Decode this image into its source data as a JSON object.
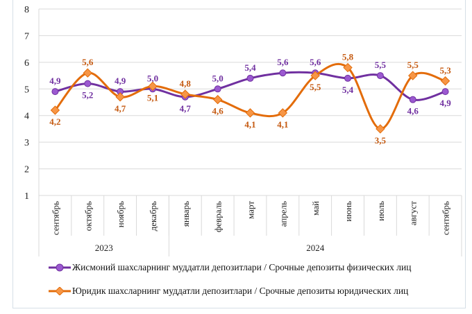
{
  "chart_data": {
    "type": "line",
    "categories": [
      "сентябрь",
      "октябрь",
      "ноябрь",
      "декабрь",
      "январь",
      "февраль",
      "март",
      "апрель",
      "май",
      "июнь",
      "июль",
      "август",
      "сентябрь"
    ],
    "year_groups": [
      {
        "label": "2023",
        "count": 4
      },
      {
        "label": "2024",
        "count": 9
      }
    ],
    "ylim": [
      1,
      8
    ],
    "yticks": [
      1,
      2,
      3,
      4,
      5,
      6,
      7,
      8
    ],
    "grid": true,
    "legend_position": "bottom",
    "series": [
      {
        "name": "Жисмоний шахсларнинг  муддатли  депозитлари  / Срочные депозиты  физических  лиц",
        "color": "#7030a0",
        "marker": "circle",
        "values": [
          4.9,
          5.2,
          4.9,
          5.0,
          4.7,
          5.0,
          5.4,
          5.6,
          5.6,
          5.4,
          5.5,
          4.6,
          4.9
        ],
        "labels": [
          "4,9",
          "5,2",
          "4,9",
          "5,0",
          "4,7",
          "5,0",
          "5,4",
          "5,6",
          "5,6",
          "5,4",
          "5,5",
          "4,6",
          "4,9"
        ]
      },
      {
        "name": "Юридик  шахсларнинг  муддатли  депозитлари  / Срочные депозиты юридических  лиц",
        "color": "#e36c0a",
        "marker": "diamond",
        "values": [
          4.2,
          5.6,
          4.7,
          5.1,
          4.8,
          4.6,
          4.1,
          4.1,
          5.5,
          5.8,
          3.5,
          5.5,
          5.3
        ],
        "labels": [
          "4,2",
          "5,6",
          "4,7",
          "5,1",
          "4,8",
          "4,6",
          "4,1",
          "4,1",
          "5,5",
          "5,8",
          "3,5",
          "5,5",
          "5,3"
        ]
      }
    ]
  }
}
